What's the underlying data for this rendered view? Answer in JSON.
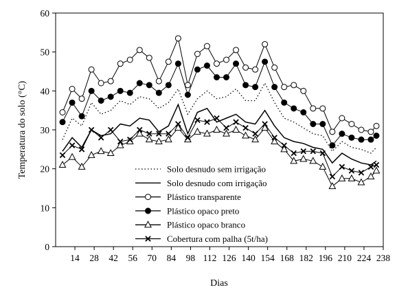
{
  "chart_data": {
    "type": "line",
    "xlabel": "Dias",
    "ylabel": "Temperatura do solo (°C)",
    "xlim": [
      0,
      238
    ],
    "ylim": [
      0,
      60
    ],
    "xticks": [
      14,
      28,
      42,
      56,
      70,
      84,
      98,
      112,
      126,
      140,
      154,
      168,
      182,
      196,
      210,
      224,
      238
    ],
    "yticks": [
      0,
      10,
      20,
      30,
      40,
      50,
      60
    ],
    "legend_position": "bottom-center",
    "x": [
      5,
      12,
      19,
      26,
      33,
      40,
      47,
      54,
      61,
      68,
      75,
      82,
      89,
      96,
      103,
      110,
      117,
      124,
      131,
      138,
      145,
      152,
      159,
      166,
      173,
      180,
      187,
      194,
      201,
      208,
      215,
      222,
      229,
      233
    ],
    "series": [
      {
        "name": "Solo desnudo sem irrigação",
        "style": "dotted",
        "marker": "none",
        "values": [
          27.5,
          33.0,
          31.0,
          37.0,
          34.0,
          35.0,
          37.5,
          36.5,
          38.5,
          38.0,
          35.5,
          37.0,
          40.5,
          34.0,
          38.0,
          40.0,
          38.0,
          38.5,
          40.5,
          37.5,
          37.5,
          42.0,
          37.0,
          33.0,
          32.0,
          30.5,
          29.0,
          28.5,
          24.5,
          27.0,
          25.5,
          25.0,
          24.0,
          25.5
        ]
      },
      {
        "name": "Solo desnudo com irrigação",
        "style": "solid",
        "marker": "none",
        "values": [
          24.5,
          28.0,
          25.5,
          30.0,
          28.5,
          29.0,
          31.5,
          31.0,
          33.0,
          32.5,
          29.5,
          31.0,
          36.5,
          29.0,
          34.5,
          35.5,
          32.0,
          33.0,
          34.0,
          32.0,
          31.5,
          35.0,
          31.0,
          28.0,
          27.0,
          26.5,
          25.5,
          25.0,
          21.5,
          24.0,
          22.5,
          21.5,
          21.0,
          22.0
        ]
      },
      {
        "name": "Plástico transparente",
        "style": "solid",
        "marker": "open-circle",
        "values": [
          34.5,
          40.5,
          38.0,
          45.5,
          42.0,
          42.5,
          47.0,
          48.0,
          50.5,
          48.5,
          42.5,
          47.5,
          53.5,
          41.5,
          49.5,
          51.5,
          47.0,
          48.0,
          50.5,
          46.0,
          45.5,
          52.0,
          46.0,
          41.0,
          41.5,
          40.0,
          35.5,
          35.5,
          29.5,
          33.0,
          31.5,
          30.0,
          29.5,
          31.0
        ]
      },
      {
        "name": "Plástico opaco preto",
        "style": "solid",
        "marker": "filled-circle",
        "values": [
          32.0,
          37.0,
          33.5,
          40.0,
          37.5,
          38.5,
          40.0,
          39.5,
          42.0,
          41.5,
          39.5,
          41.5,
          47.0,
          39.0,
          45.5,
          46.5,
          43.5,
          43.5,
          47.0,
          41.5,
          41.0,
          47.5,
          41.0,
          37.0,
          35.5,
          34.5,
          31.5,
          31.5,
          26.0,
          29.0,
          28.0,
          27.5,
          27.5,
          28.5
        ]
      },
      {
        "name": "Plástico opaco branco",
        "style": "solid",
        "marker": "open-triangle",
        "values": [
          21.0,
          23.0,
          20.5,
          23.5,
          24.5,
          24.0,
          26.0,
          27.0,
          29.0,
          27.5,
          27.0,
          27.5,
          30.5,
          27.5,
          29.5,
          29.0,
          30.0,
          29.0,
          30.0,
          28.5,
          27.5,
          30.5,
          27.0,
          25.0,
          22.0,
          22.5,
          22.0,
          20.5,
          15.5,
          17.5,
          17.5,
          16.5,
          18.0,
          19.5
        ]
      },
      {
        "name": "Cobertura com palha (5t/ha)",
        "style": "solid",
        "marker": "x",
        "values": [
          23.5,
          26.0,
          25.0,
          30.0,
          28.0,
          30.0,
          27.0,
          27.5,
          30.0,
          29.0,
          29.0,
          29.0,
          31.5,
          28.0,
          32.5,
          32.0,
          33.0,
          30.5,
          32.0,
          30.5,
          29.0,
          31.5,
          28.0,
          26.0,
          24.0,
          24.5,
          24.5,
          24.0,
          18.0,
          20.5,
          19.5,
          19.0,
          20.5,
          21.0
        ]
      }
    ]
  }
}
